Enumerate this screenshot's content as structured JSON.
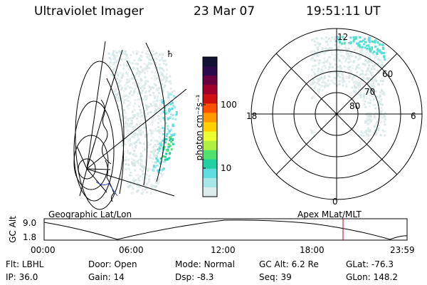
{
  "header": {
    "instrument": "Ultraviolet Imager",
    "date": "23 Mar 07",
    "time": "19:51:11 UT"
  },
  "colorbar": {
    "unit_label": "photon cm⁻²s⁻¹",
    "ticks": [
      "100",
      "10"
    ],
    "colors": [
      "#111133",
      "#2a0a4a",
      "#6a0040",
      "#a0002a",
      "#d01010",
      "#ff5000",
      "#ff9a00",
      "#ffd000",
      "#eeff30",
      "#b0f040",
      "#50e070",
      "#20d0a0",
      "#60dde0",
      "#a8e8e8",
      "#dcecec"
    ]
  },
  "left_panel": {
    "label": "Geographic Lat/Lon",
    "sun_glyph": "sun-icon"
  },
  "right_panel": {
    "label": "Apex  MLat/MLT",
    "mlt_labels": {
      "top": "12",
      "left": "18",
      "right": "6",
      "bottom": "0"
    },
    "lat_labels": [
      "60",
      "70",
      "80"
    ]
  },
  "timeline": {
    "y_axis_label": "GC Alt",
    "y_ticks": [
      "9.0",
      "1.8"
    ],
    "x_ticks": [
      "00:00",
      "06:00",
      "12:00",
      "18:00",
      "23:59"
    ],
    "marker_color": "#cc0000"
  },
  "info": {
    "row1": [
      {
        "label": "Flt:",
        "value": "LBHL"
      },
      {
        "label": "Door:",
        "value": "Open"
      },
      {
        "label": "Mode:",
        "value": "Normal"
      },
      {
        "label": "GC Alt:",
        "value": "6.2 Re"
      },
      {
        "label": "GLat:",
        "value": "-76.3"
      }
    ],
    "row2": [
      {
        "label": "IP:",
        "value": "36.0"
      },
      {
        "label": "Gain:",
        "value": "14"
      },
      {
        "label": "Dsp:",
        "value": "-8.3"
      },
      {
        "label": "Seq:",
        "value": "39"
      },
      {
        "label": "GLon:",
        "value": "148.2"
      }
    ]
  }
}
